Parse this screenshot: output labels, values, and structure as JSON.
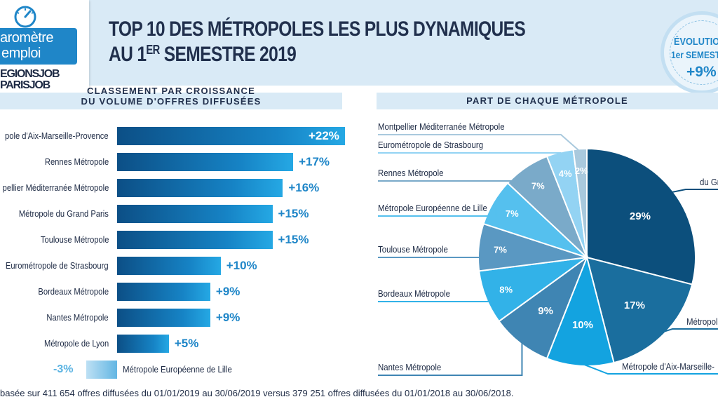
{
  "logo": {
    "line1": "aromètre",
    "line2": "emploi",
    "brand1": "EGIONSJOB",
    "brand2": "PARISJOB",
    "gauge_icon": "gauge-icon"
  },
  "title": {
    "line1": "TOP 10 DES MÉTROPOLES LES PLUS DYNAMIQUES",
    "line2_prefix": "AU 1",
    "line2_sup": "ER",
    "line2_suffix": " SEMESTRE 2019"
  },
  "evolution": {
    "label1": "ÉVOLUTIO",
    "label2": "1er SEMEST",
    "value": "+9%"
  },
  "left_section": {
    "heading_line1": "CLASSEMENT PAR CROISSANCE",
    "heading_line2": "DU VOLUME D'OFFRES DIFFUSÉES"
  },
  "right_section": {
    "heading": "PART DE CHAQUE MÉTROPOLE"
  },
  "footnote": "basée sur 411 654 offres diffusées du 01/01/2019 au 30/06/2019 versus 379 251 offres diffusées du 01/01/2018 au 30/06/2018.",
  "colors": {
    "accent": "#1f86c8",
    "header_bg": "#d9eaf6",
    "bar_dark": "#0c4f86",
    "bar_light": "#25a8e4"
  },
  "chart_data": [
    {
      "type": "bar",
      "orientation": "horizontal",
      "title": "CLASSEMENT PAR CROISSANCE DU VOLUME D'OFFRES DIFFUSÉES",
      "unit": "%",
      "categories": [
        "pole d'Aix-Marseille-Provence",
        "Rennes Métropole",
        "pellier Méditerranée Métropole",
        "Métropole du Grand Paris",
        "Toulouse Métropole",
        "Eurométropole de Strasbourg",
        "Bordeaux Métropole",
        "Nantes Métropole",
        "Métropole de Lyon",
        "Métropole Européenne de Lille"
      ],
      "values": [
        22,
        17,
        16,
        15,
        15,
        10,
        9,
        9,
        5,
        -3
      ],
      "value_labels": [
        "+22%",
        "+17%",
        "+16%",
        "+15%",
        "+15%",
        "+10%",
        "+9%",
        "+9%",
        "+5%",
        "-3%"
      ],
      "xlim": [
        -3,
        22
      ]
    },
    {
      "type": "pie",
      "title": "PART DE CHAQUE MÉTROPOLE",
      "unit": "%",
      "slices": [
        {
          "label": "du Gr",
          "value": 29,
          "text": "29%",
          "color": "#0c4f7c"
        },
        {
          "label": "Métropol",
          "value": 17,
          "text": "17%",
          "color": "#1a6e9e"
        },
        {
          "label": "Métropole d'Aix-Marseille-",
          "value": 10,
          "text": "10%",
          "color": "#13a3e0"
        },
        {
          "label": "Nantes Métropole",
          "value": 9,
          "text": "9%",
          "color": "#3f85b3"
        },
        {
          "label": "Bordeaux Métropole",
          "value": 8,
          "text": "8%",
          "color": "#32b2e8"
        },
        {
          "label": "Toulouse Métropole",
          "value": 7,
          "text": "7%",
          "color": "#5a98c2"
        },
        {
          "label": "Métropole Européenne de Lille",
          "value": 7,
          "text": "7%",
          "color": "#55c0ee"
        },
        {
          "label": "Rennes Métropole",
          "value": 7,
          "text": "7%",
          "color": "#7aaac9"
        },
        {
          "label": "Eurométropole de Strasbourg",
          "value": 4,
          "text": "4%",
          "color": "#93d3f3"
        },
        {
          "label": "Montpellier Méditerranée Métropole",
          "value": 2,
          "text": "2%",
          "color": "#a9c9dd"
        }
      ]
    }
  ]
}
